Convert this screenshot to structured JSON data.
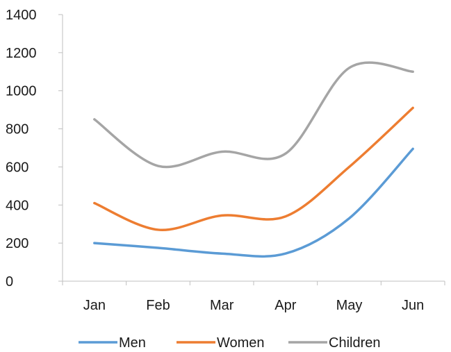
{
  "chart_data": {
    "type": "line",
    "title": "",
    "xlabel": "",
    "ylabel": "",
    "categories": [
      "Jan",
      "Feb",
      "Mar",
      "Apr",
      "May",
      "Jun"
    ],
    "ylim": [
      0,
      1400
    ],
    "yticks": [
      0,
      200,
      400,
      600,
      800,
      1000,
      1200,
      1400
    ],
    "grid": false,
    "smooth": true,
    "legend_position": "bottom",
    "series": [
      {
        "name": "Men",
        "color": "#5B9BD5",
        "values": [
          200,
          175,
          145,
          145,
          330,
          695
        ]
      },
      {
        "name": "Women",
        "color": "#ED7D31",
        "values": [
          410,
          270,
          345,
          340,
          600,
          910
        ]
      },
      {
        "name": "Children",
        "color": "#A5A5A5",
        "values": [
          850,
          605,
          680,
          670,
          1120,
          1100
        ]
      }
    ]
  }
}
